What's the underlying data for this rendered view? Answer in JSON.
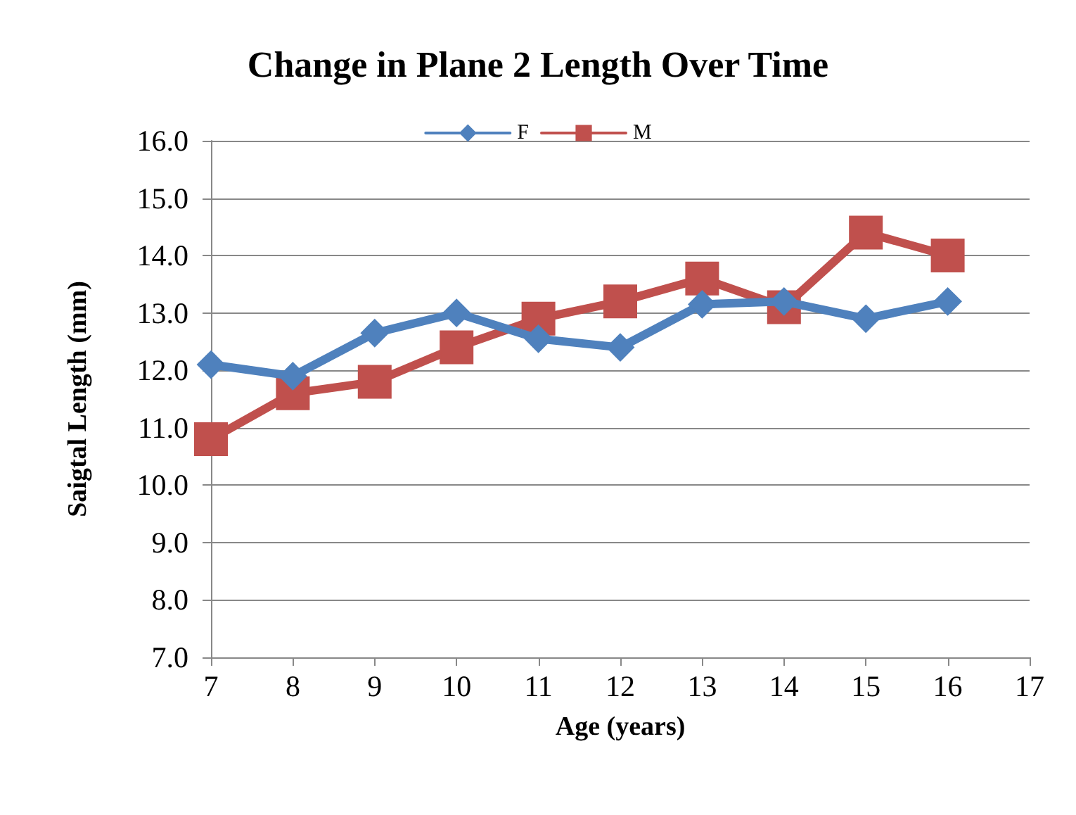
{
  "chart_data": {
    "type": "line",
    "title": "Change in Plane 2 Length Over Time",
    "xlabel": "Age (years)",
    "ylabel": "Saigtal Length (mm)",
    "x": [
      7,
      8,
      9,
      10,
      11,
      12,
      13,
      14,
      15,
      16
    ],
    "series": [
      {
        "name": "F",
        "color": "#4f81bd",
        "marker": "diamond",
        "values": [
          12.1,
          11.9,
          12.65,
          13.0,
          12.55,
          12.4,
          13.15,
          13.2,
          12.9,
          13.2
        ]
      },
      {
        "name": "M",
        "color": "#c0504d",
        "marker": "square",
        "values": [
          10.8,
          11.6,
          11.8,
          12.4,
          12.9,
          13.2,
          13.6,
          13.1,
          14.4,
          14.0
        ]
      }
    ],
    "xlim": [
      7,
      17
    ],
    "xticks": [
      7,
      8,
      9,
      10,
      11,
      12,
      13,
      14,
      15,
      16,
      17
    ],
    "ylim": [
      7,
      16
    ],
    "yticks": [
      {
        "value": 7,
        "label": "7.0"
      },
      {
        "value": 8,
        "label": "8.0"
      },
      {
        "value": 9,
        "label": "9.0"
      },
      {
        "value": 10,
        "label": "10.0"
      },
      {
        "value": 11,
        "label": "11.0"
      },
      {
        "value": 12,
        "label": "12.0"
      },
      {
        "value": 13,
        "label": "13.0"
      },
      {
        "value": 14,
        "label": "14.0"
      },
      {
        "value": 15,
        "label": "15.0"
      },
      {
        "value": 16,
        "label": "16.0"
      }
    ],
    "grid": "y",
    "legend": "top",
    "line_style": "solid"
  }
}
